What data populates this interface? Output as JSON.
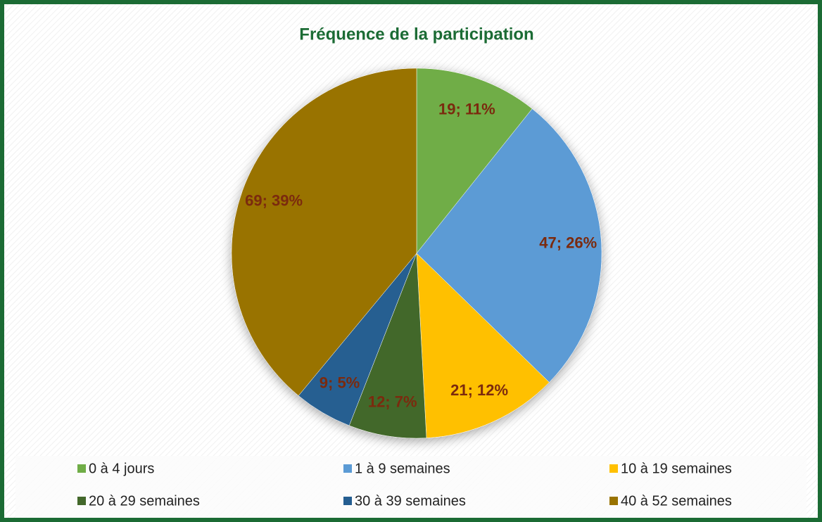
{
  "chart_data": {
    "type": "pie",
    "title": "Fréquence de la participation",
    "categories": [
      "0 à 4 jours",
      "1 à 9 semaines",
      "10 à 19 semaines",
      "20 à 29 semaines",
      "30 à 39 semaines",
      "40 à 52 semaines"
    ],
    "values": [
      19,
      47,
      21,
      12,
      9,
      69
    ],
    "value_labels": [
      "19; 11%",
      "47; 26%",
      "21; 12%",
      "12; 7%",
      "9; 5%",
      "69; 39%"
    ],
    "colors": [
      "#70ad47",
      "#5b9bd5",
      "#ffc000",
      "#43682b",
      "#255e91",
      "#997300"
    ],
    "legend": "bottom"
  }
}
